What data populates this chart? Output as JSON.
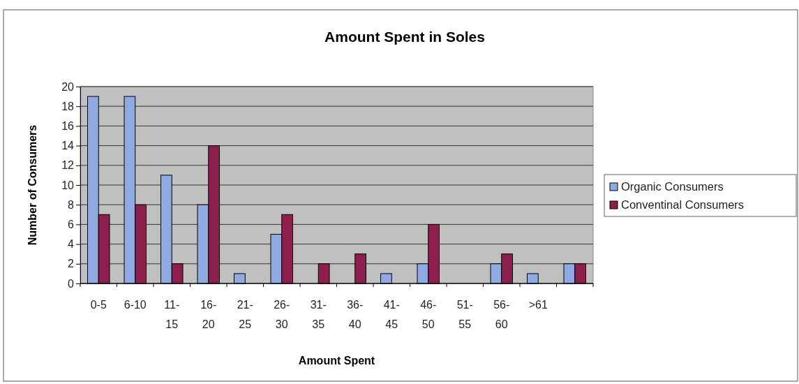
{
  "chart_data": {
    "type": "bar",
    "title": "Amount Spent in Soles",
    "xlabel": "Amount Spent",
    "ylabel": "Number of Consumers",
    "categories": [
      "0-5",
      "6-10",
      "11-15",
      "16-20",
      "21-25",
      "26-30",
      "31-35",
      "36-40",
      "41-45",
      "46-50",
      "51-55",
      "56-60",
      ">61",
      null
    ],
    "series": [
      {
        "name": "Organic Consumers",
        "color": "#8eaae0",
        "values": [
          19,
          19,
          11,
          8,
          1,
          5,
          0,
          0,
          1,
          2,
          0,
          2,
          1,
          2
        ]
      },
      {
        "name": "Conventinal Consumers",
        "color": "#8c1f4e",
        "values": [
          7,
          8,
          2,
          14,
          0,
          7,
          2,
          3,
          0,
          6,
          0,
          3,
          0,
          2
        ]
      }
    ],
    "ylim": [
      0,
      20
    ],
    "yticks": [
      0,
      2,
      4,
      6,
      8,
      10,
      12,
      14,
      16,
      18,
      20
    ],
    "grid": "y",
    "legend": "right"
  }
}
